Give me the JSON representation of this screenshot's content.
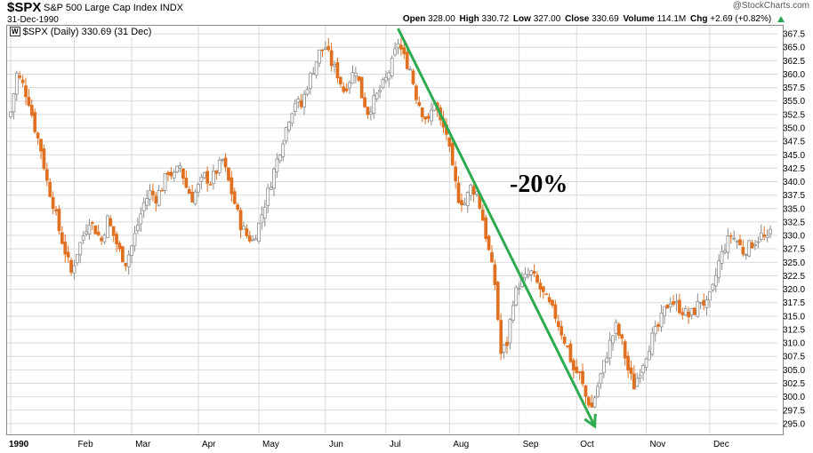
{
  "header": {
    "symbol": "$SPX",
    "name": "S&P 500 Large Cap Index",
    "exchange": "INDX",
    "date": "31-Dec-1990",
    "watermark": "@StockCharts.com",
    "open_label": "Open",
    "open": "328.00",
    "high_label": "High",
    "high": "330.72",
    "low_label": "Low",
    "low": "327.00",
    "close_label": "Close",
    "close": "330.69",
    "volume_label": "Volume",
    "volume": "114.1M",
    "chg_label": "Chg",
    "chg": "+2.69 (+0.82%)"
  },
  "series_label": "$SPX (Daily) 330.69 (31 Dec)",
  "colors": {
    "up": "#8c8c8c",
    "down": "#e07020",
    "annotation": "#2eab4f",
    "grid": "#d9d9d9"
  },
  "chart_data": {
    "type": "ohlc-bar",
    "ylim": [
      293,
      369
    ],
    "y_ticks": [
      "295.0",
      "297.5",
      "300.0",
      "302.5",
      "305.0",
      "307.5",
      "310.0",
      "312.5",
      "315.0",
      "317.5",
      "320.0",
      "322.5",
      "325.0",
      "327.5",
      "330.0",
      "332.5",
      "335.0",
      "337.5",
      "340.0",
      "342.5",
      "345.0",
      "347.5",
      "350.0",
      "352.5",
      "355.0",
      "357.5",
      "360.0",
      "362.5",
      "365.0",
      "367.5"
    ],
    "x_ticks": [
      {
        "label": "1990",
        "day": 0
      },
      {
        "label": "Feb",
        "day": 21
      },
      {
        "label": "Mar",
        "day": 40
      },
      {
        "label": "Apr",
        "day": 62
      },
      {
        "label": "May",
        "day": 82
      },
      {
        "label": "Jun",
        "day": 104
      },
      {
        "label": "Jul",
        "day": 124
      },
      {
        "label": "Aug",
        "day": 145
      },
      {
        "label": "Sep",
        "day": 168
      },
      {
        "label": "Oct",
        "day": 187
      },
      {
        "label": "Nov",
        "day": 210
      },
      {
        "label": "Dec",
        "day": 231
      }
    ],
    "trading_days": 252,
    "close_path": [
      [
        0,
        353
      ],
      [
        2,
        360
      ],
      [
        4,
        358
      ],
      [
        6,
        355
      ],
      [
        8,
        350
      ],
      [
        10,
        346
      ],
      [
        12,
        340
      ],
      [
        14,
        336
      ],
      [
        16,
        331
      ],
      [
        18,
        327
      ],
      [
        20,
        323
      ],
      [
        22,
        327
      ],
      [
        24,
        330
      ],
      [
        26,
        333
      ],
      [
        28,
        331
      ],
      [
        30,
        329
      ],
      [
        32,
        333
      ],
      [
        34,
        330
      ],
      [
        36,
        327
      ],
      [
        38,
        325
      ],
      [
        40,
        328
      ],
      [
        42,
        332
      ],
      [
        44,
        336
      ],
      [
        46,
        338
      ],
      [
        48,
        337
      ],
      [
        50,
        339
      ],
      [
        52,
        342
      ],
      [
        54,
        341
      ],
      [
        56,
        343
      ],
      [
        58,
        339
      ],
      [
        60,
        337
      ],
      [
        62,
        339
      ],
      [
        64,
        341
      ],
      [
        66,
        340
      ],
      [
        68,
        342
      ],
      [
        70,
        344
      ],
      [
        72,
        340
      ],
      [
        74,
        336
      ],
      [
        76,
        332
      ],
      [
        78,
        330
      ],
      [
        80,
        329
      ],
      [
        82,
        332
      ],
      [
        84,
        336
      ],
      [
        86,
        340
      ],
      [
        88,
        344
      ],
      [
        90,
        348
      ],
      [
        92,
        352
      ],
      [
        94,
        355
      ],
      [
        96,
        354
      ],
      [
        98,
        358
      ],
      [
        100,
        361
      ],
      [
        102,
        364
      ],
      [
        104,
        365
      ],
      [
        106,
        362
      ],
      [
        108,
        360
      ],
      [
        110,
        357
      ],
      [
        112,
        359
      ],
      [
        114,
        361
      ],
      [
        116,
        356
      ],
      [
        118,
        353
      ],
      [
        120,
        355
      ],
      [
        122,
        357
      ],
      [
        124,
        359
      ],
      [
        126,
        362
      ],
      [
        128,
        366
      ],
      [
        130,
        363
      ],
      [
        132,
        361
      ],
      [
        134,
        356
      ],
      [
        136,
        353
      ],
      [
        138,
        351
      ],
      [
        140,
        355
      ],
      [
        142,
        351
      ],
      [
        144,
        349
      ],
      [
        146,
        342
      ],
      [
        148,
        337
      ],
      [
        150,
        336
      ],
      [
        152,
        339
      ],
      [
        154,
        338
      ],
      [
        156,
        333
      ],
      [
        158,
        327
      ],
      [
        160,
        321
      ],
      [
        162,
        308
      ],
      [
        164,
        310
      ],
      [
        166,
        318
      ],
      [
        168,
        321
      ],
      [
        170,
        322
      ],
      [
        172,
        323
      ],
      [
        174,
        321
      ],
      [
        176,
        319
      ],
      [
        178,
        317
      ],
      [
        180,
        315
      ],
      [
        182,
        312
      ],
      [
        184,
        309
      ],
      [
        186,
        305
      ],
      [
        188,
        304
      ],
      [
        190,
        300
      ],
      [
        192,
        298
      ],
      [
        194,
        302
      ],
      [
        196,
        306
      ],
      [
        198,
        310
      ],
      [
        200,
        313
      ],
      [
        202,
        310
      ],
      [
        204,
        305
      ],
      [
        206,
        302
      ],
      [
        208,
        305
      ],
      [
        210,
        308
      ],
      [
        212,
        311
      ],
      [
        214,
        313
      ],
      [
        216,
        316
      ],
      [
        218,
        318
      ],
      [
        220,
        317
      ],
      [
        222,
        316
      ],
      [
        224,
        315
      ],
      [
        226,
        316
      ],
      [
        228,
        318
      ],
      [
        230,
        317
      ],
      [
        232,
        320
      ],
      [
        234,
        325
      ],
      [
        236,
        328
      ],
      [
        238,
        330
      ],
      [
        240,
        329
      ],
      [
        242,
        327
      ],
      [
        244,
        328
      ],
      [
        246,
        329
      ],
      [
        248,
        330
      ],
      [
        250,
        329
      ],
      [
        251,
        330.69
      ]
    ],
    "annotation": {
      "text": "-20%",
      "from": {
        "day": 128,
        "value": 368.5
      },
      "to": {
        "day": 193,
        "value": 294.5
      }
    }
  }
}
